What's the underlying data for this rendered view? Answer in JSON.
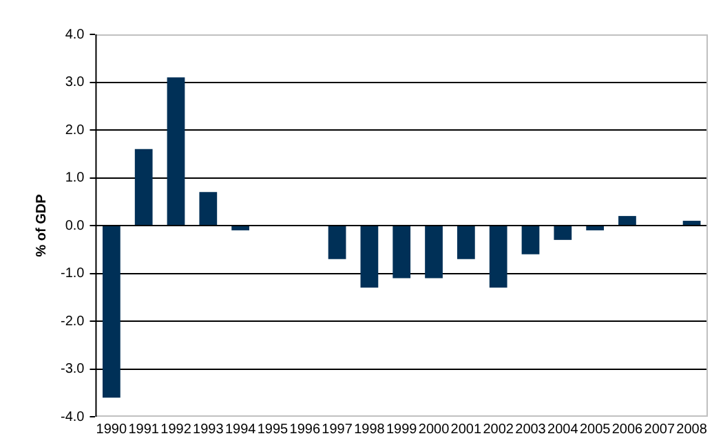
{
  "chart_data": {
    "type": "bar",
    "ylabel": "% of GDP",
    "categories": [
      "1990",
      "1991",
      "1992",
      "1993",
      "1994",
      "1995",
      "1996",
      "1997",
      "1998",
      "1999",
      "2000",
      "2001",
      "2002",
      "2003",
      "2004",
      "2005",
      "2006",
      "2007",
      "2008"
    ],
    "values": [
      -3.6,
      1.6,
      3.1,
      0.7,
      -0.1,
      0,
      0,
      -0.7,
      -1.3,
      -1.1,
      -1.1,
      -0.7,
      -1.3,
      -0.6,
      -0.3,
      -0.1,
      0.2,
      0,
      0.1
    ],
    "color": "#003057",
    "ylim": [
      -4,
      4
    ],
    "yticks": [
      {
        "value": -4,
        "label": "-4.0"
      },
      {
        "value": -3,
        "label": "-3.0"
      },
      {
        "value": -2,
        "label": "-2.0"
      },
      {
        "value": -1,
        "label": "-1.0"
      },
      {
        "value": 0,
        "label": "0.0"
      },
      {
        "value": 1,
        "label": "1.0"
      },
      {
        "value": 2,
        "label": "2.0"
      },
      {
        "value": 3,
        "label": "3.0"
      },
      {
        "value": 4,
        "label": "4.0"
      }
    ],
    "grid": "y",
    "legend": false
  }
}
